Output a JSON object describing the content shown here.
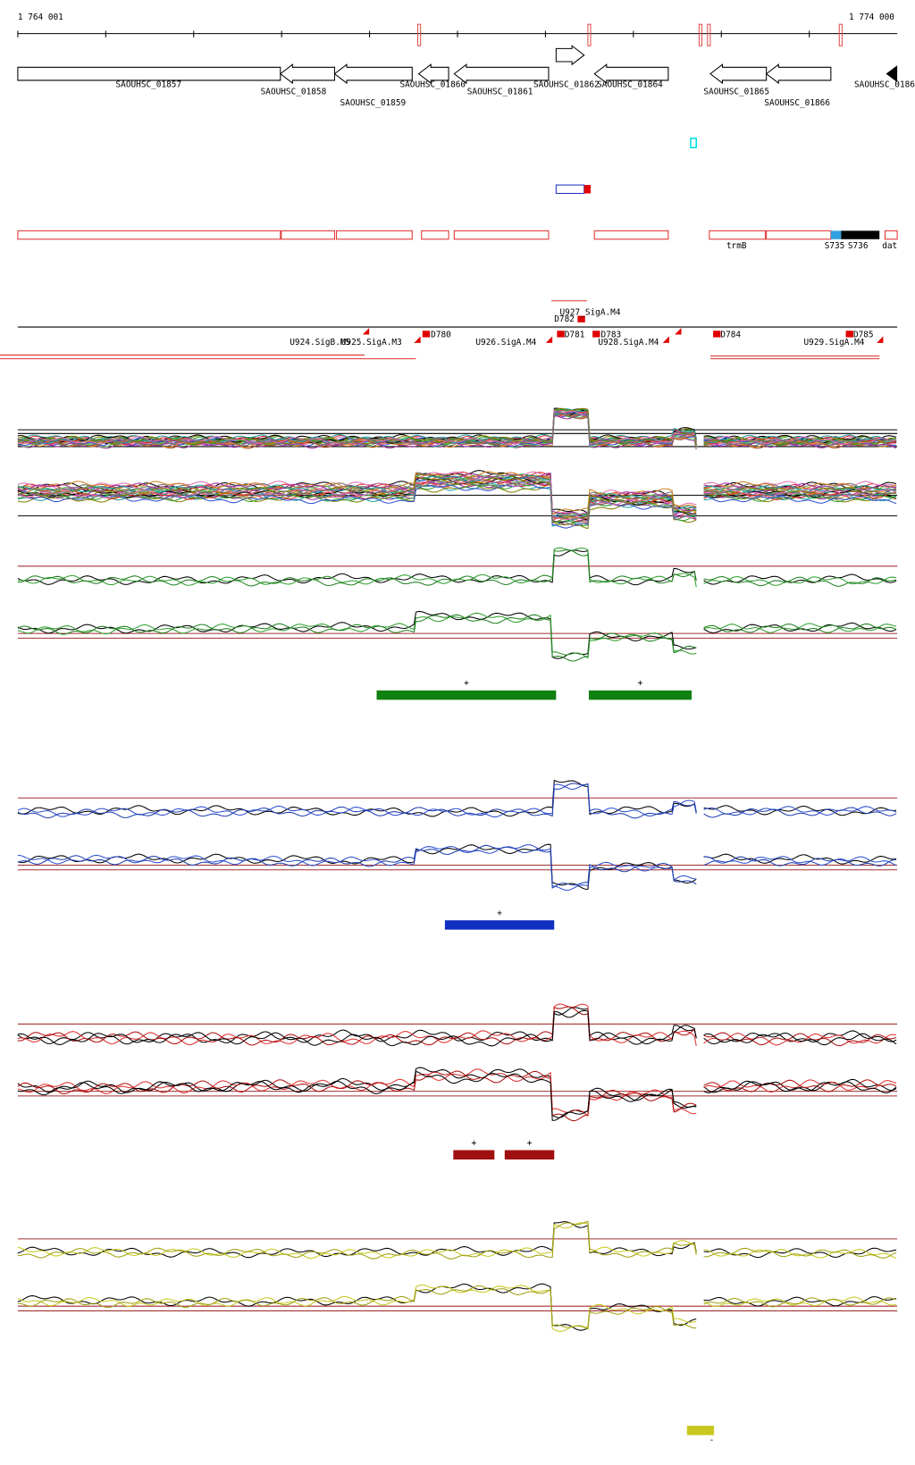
{
  "ruler": {
    "start": "1 764 001",
    "end": "1 774 000"
  },
  "genes": [
    "SAOUHSC_01857",
    "SAOUHSC_01858",
    "SAOUHSC_01859",
    "SAOUHSC_01860",
    "SAOUHSC_01861",
    "SAOUHSC_01862",
    "SAOUHSC_01864",
    "SAOUHSC_01865",
    "SAOUHSC_01866",
    "SAOUHSC_0186"
  ],
  "features": [
    "trmB",
    "S735",
    "S736",
    "dat"
  ],
  "elements": [
    "U927_SigA.M4",
    "D782",
    "U924.SigB.M5",
    "U925.SigA.M3",
    "D780",
    "U926.SigA.M4",
    "D781",
    "D783",
    "U928.SigA.M4",
    "D784",
    "U929.SigA.M4",
    "D785"
  ],
  "strand_marks": [
    "+",
    "+",
    "+",
    "+",
    "+",
    "-"
  ]
}
